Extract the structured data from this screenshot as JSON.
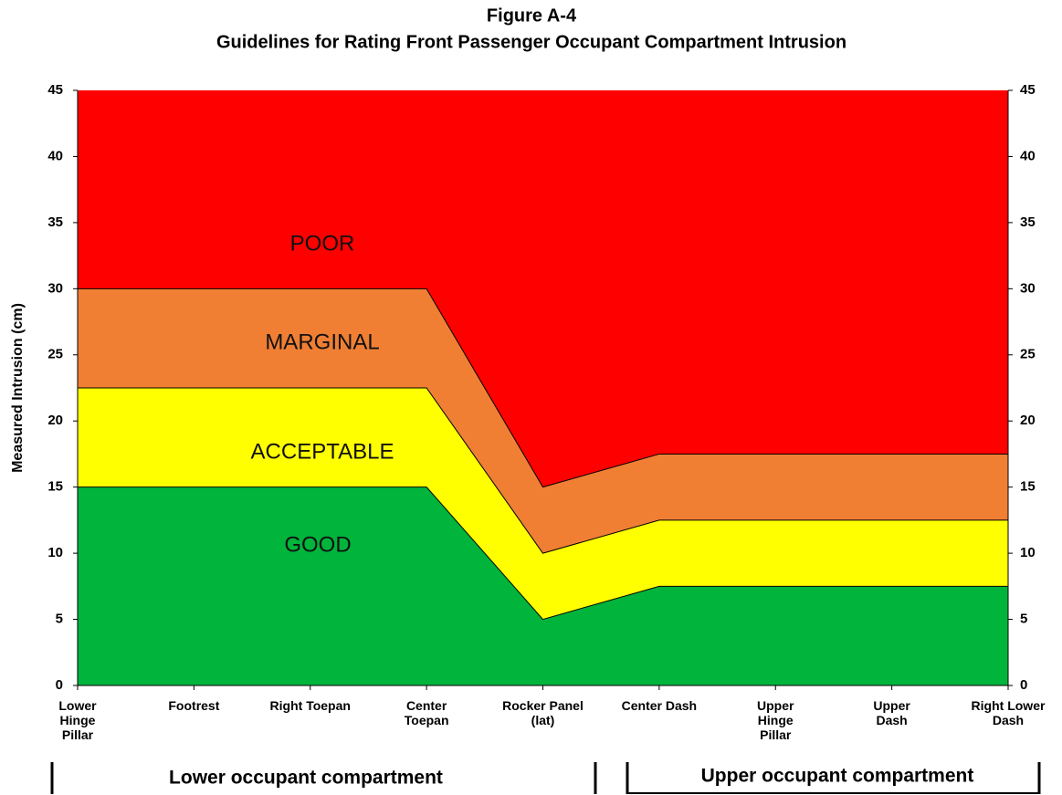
{
  "chart_data": {
    "type": "stacked_area",
    "title": "Figure A-4",
    "subtitle": "Guidelines for Rating Front Passenger Occupant Compartment Intrusion",
    "y_label": "Measured Intrusion (cm)",
    "categories": [
      "Lower\nHinge\nPillar",
      "Footrest",
      "Right Toepan",
      "Center\nToepan",
      "Rocker Panel\n(lat)",
      "Center Dash",
      "Upper\nHinge\nPillar",
      "Upper\nDash",
      "Right Lower\nDash"
    ],
    "series": [
      {
        "name": "GOOD",
        "color": "#00b43c",
        "values": [
          15,
          15,
          15,
          15,
          5,
          7.5,
          7.5,
          7.5,
          7.5
        ]
      },
      {
        "name": "ACCEPTABLE",
        "color": "#ffff00",
        "values": [
          7.5,
          7.5,
          7.5,
          7.5,
          5,
          5,
          5,
          5,
          5
        ]
      },
      {
        "name": "MARGINAL",
        "color": "#f07f34",
        "values": [
          7.5,
          7.5,
          7.5,
          7.5,
          5,
          5,
          5,
          5,
          5
        ]
      },
      {
        "name": "POOR",
        "color": "#ff0000",
        "values": [
          15,
          15,
          15,
          15,
          30,
          27.5,
          27.5,
          27.5,
          27.5
        ]
      }
    ],
    "ylim": [
      0,
      45
    ],
    "yticks": [
      0,
      5,
      10,
      15,
      20,
      25,
      30,
      35,
      40,
      45
    ],
    "y2lim": [
      0,
      45
    ],
    "y2ticks": [
      0,
      5,
      10,
      15,
      20,
      25,
      30,
      35,
      40,
      45
    ],
    "annotations": [
      "Lower occupant compartment",
      "Upper occupant compartment"
    ]
  }
}
